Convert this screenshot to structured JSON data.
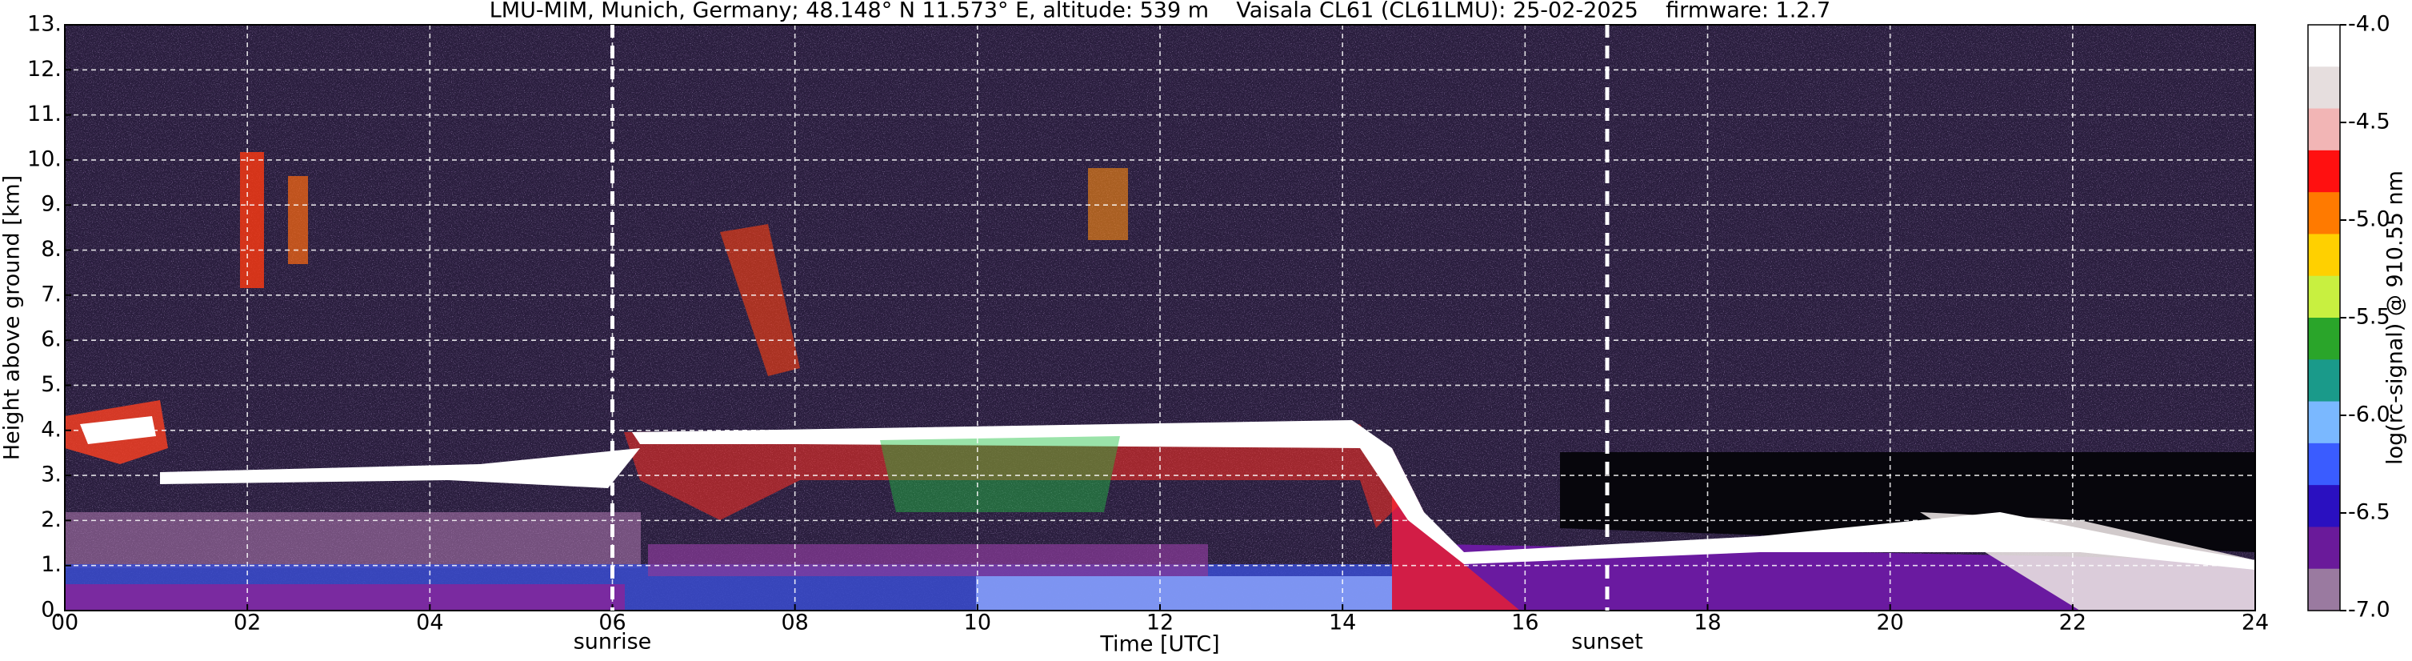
{
  "chart_data": {
    "type": "heatmap",
    "title": "LMU-MIM, Munich, Germany; 48.148° N 11.573° E, altitude: 539 m    Vaisala CL61 (CL61LMU): 25-02-2025    firmware: 1.2.7",
    "xlabel": "Time [UTC]",
    "ylabel": "Height above ground [km]",
    "xlim": [
      0,
      24
    ],
    "xticks": [
      {
        "value": 0,
        "label": "00"
      },
      {
        "value": 2,
        "label": "02"
      },
      {
        "value": 4,
        "label": "04"
      },
      {
        "value": 6,
        "label": "06"
      },
      {
        "value": 8,
        "label": "08"
      },
      {
        "value": 10,
        "label": "10"
      },
      {
        "value": 12,
        "label": "12"
      },
      {
        "value": 14,
        "label": "14"
      },
      {
        "value": 16,
        "label": "16"
      },
      {
        "value": 18,
        "label": "18"
      },
      {
        "value": 20,
        "label": "20"
      },
      {
        "value": 22,
        "label": "22"
      },
      {
        "value": 24,
        "label": "24"
      }
    ],
    "ylim": [
      0,
      13
    ],
    "yticks": [
      {
        "value": 0,
        "label": "0."
      },
      {
        "value": 1,
        "label": "1."
      },
      {
        "value": 2,
        "label": "2."
      },
      {
        "value": 3,
        "label": "3."
      },
      {
        "value": 4,
        "label": "4."
      },
      {
        "value": 5,
        "label": "5."
      },
      {
        "value": 6,
        "label": "6."
      },
      {
        "value": 7,
        "label": "7."
      },
      {
        "value": 8,
        "label": "8."
      },
      {
        "value": 9,
        "label": "9."
      },
      {
        "value": 10,
        "label": "10."
      },
      {
        "value": 11,
        "label": "11."
      },
      {
        "value": 12,
        "label": "12."
      },
      {
        "value": 13,
        "label": "13."
      }
    ],
    "grid": true,
    "colorbar": {
      "label": "log(rc-signal) @ 910.55 nm",
      "lim": [
        -7,
        -4
      ],
      "ticks": [
        {
          "value": -4,
          "label": "-4.0"
        },
        -4.5,
        {
          "value": -5,
          "label": "-5.0"
        },
        -5.5,
        {
          "value": -6,
          "label": "-6.0"
        },
        -6.5,
        {
          "value": -7,
          "label": "-7.0"
        }
      ],
      "colors": [
        "#ffffff",
        "#e6dede",
        "#f2b5b5",
        "#ff1010",
        "#ff7a00",
        "#ffd000",
        "#c8f040",
        "#2aa52a",
        "#1a9a8a",
        "#7ab8ff",
        "#3a5cff",
        "#2a10c0",
        "#6a1a9a",
        "#9a7aa0"
      ]
    },
    "annotations": [
      {
        "text": "sunrise",
        "x": 6.0
      },
      {
        "text": "sunset",
        "x": 16.9
      }
    ]
  }
}
